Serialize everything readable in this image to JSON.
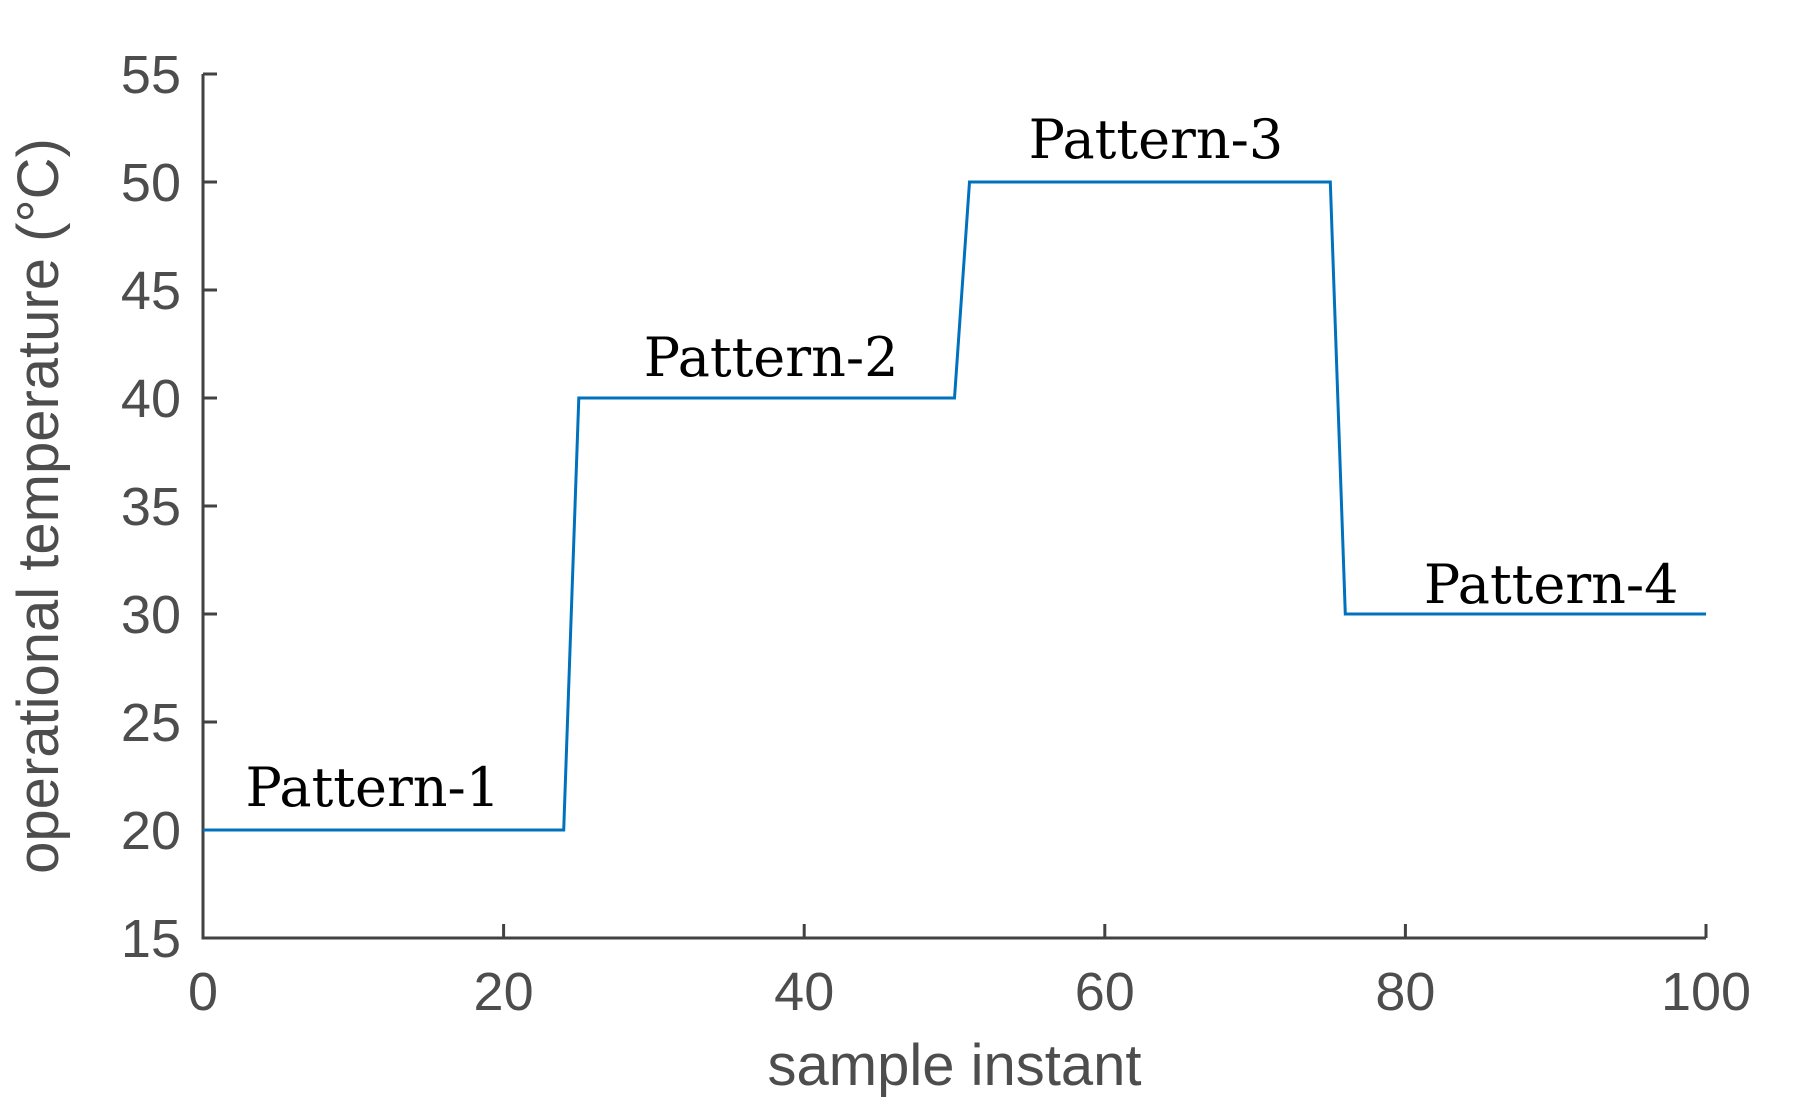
{
  "figure": {
    "background": "#ffffff"
  },
  "chart_data": {
    "type": "line",
    "subtype": "step",
    "title": "",
    "xlabel": "sample instant",
    "ylabel": "operational temperature (°C)",
    "xlim": [
      0,
      100
    ],
    "ylim": [
      15,
      55
    ],
    "xticks": [
      0,
      20,
      40,
      60,
      80,
      100
    ],
    "yticks": [
      15,
      20,
      25,
      30,
      35,
      40,
      45,
      50,
      55
    ],
    "grid": "off",
    "legend": "none",
    "box": "off",
    "tick_direction": "in",
    "line_color": "#0072BD",
    "axis_color": "#424242",
    "tick_label_color": "#4d4d4d",
    "axis_label_color": "#4d4d4d",
    "annotation_color": "#000000",
    "series": [
      {
        "name": "operational temperature",
        "x": [
          0,
          24,
          25,
          50,
          51,
          75,
          76,
          100
        ],
        "y": [
          20,
          20,
          40,
          40,
          50,
          50,
          30,
          30
        ]
      }
    ],
    "segments": [
      {
        "label": "Pattern-1",
        "x_range": [
          0,
          24
        ],
        "temperature": 20
      },
      {
        "label": "Pattern-2",
        "x_range": [
          25,
          50
        ],
        "temperature": 40
      },
      {
        "label": "Pattern-3",
        "x_range": [
          51,
          75
        ],
        "temperature": 50
      },
      {
        "label": "Pattern-4",
        "x_range": [
          76,
          100
        ],
        "temperature": 30
      }
    ],
    "annotations": [
      {
        "text": "Pattern-1",
        "x": 11.3,
        "y": 22.0
      },
      {
        "text": "Pattern-2",
        "x": 37.8,
        "y": 41.9
      },
      {
        "text": "Pattern-3",
        "x": 63.4,
        "y": 52.0
      },
      {
        "text": "Pattern-4",
        "x": 89.7,
        "y": 31.4
      }
    ]
  }
}
